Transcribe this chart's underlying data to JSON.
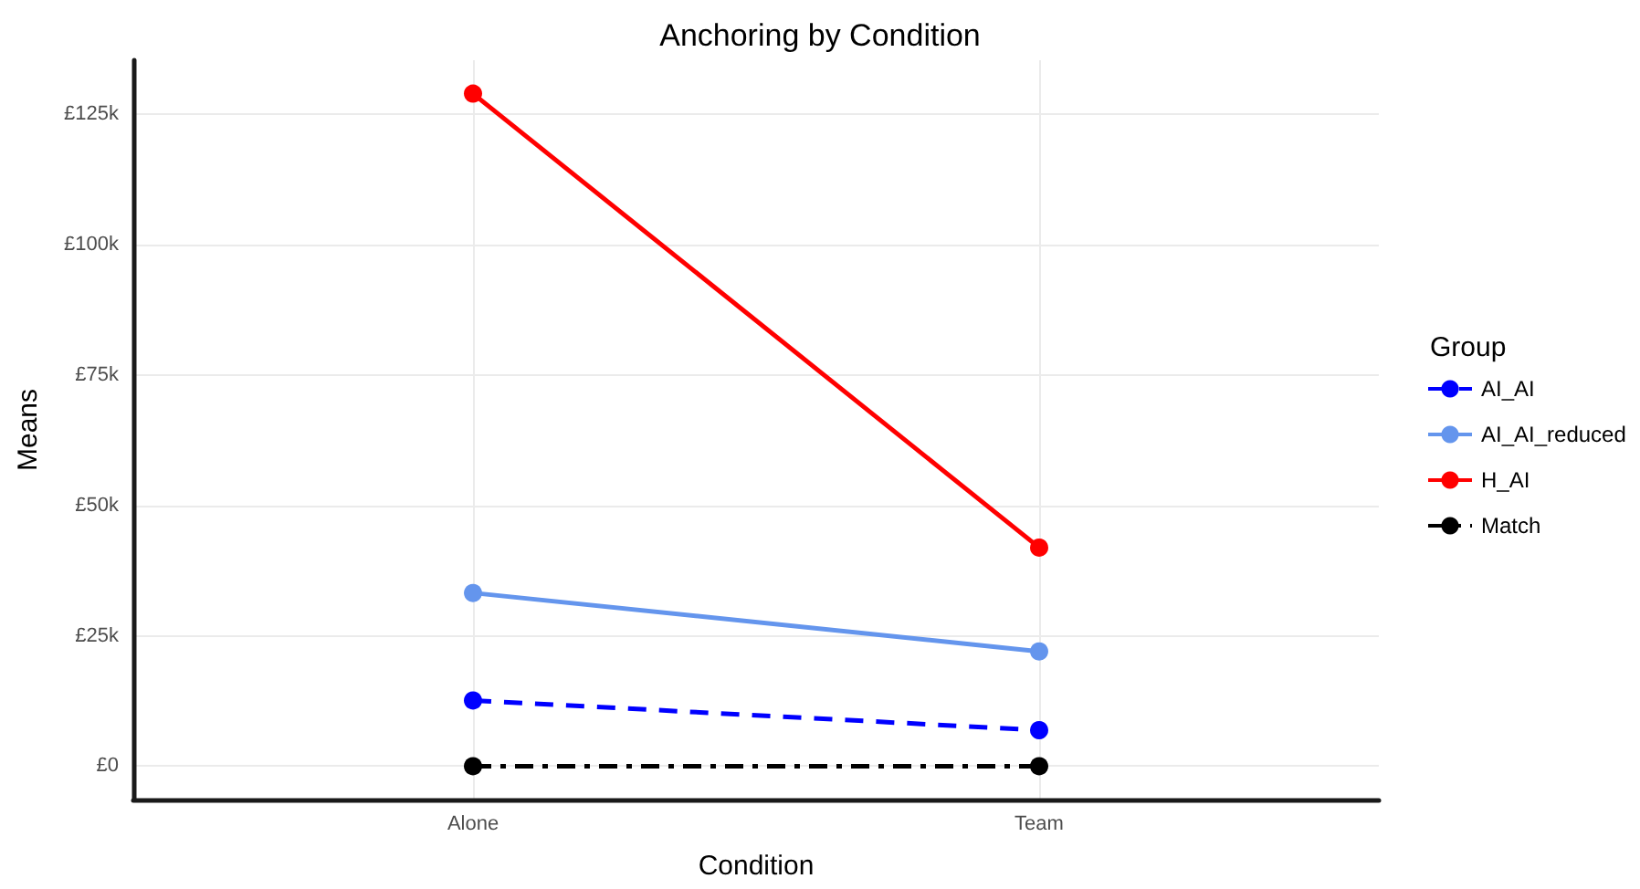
{
  "chart_data": {
    "type": "line",
    "title": "Anchoring by Condition",
    "xlabel": "Condition",
    "ylabel": "Means",
    "legend_title": "Group",
    "categories": [
      "Alone",
      "Team"
    ],
    "series": [
      {
        "name": "AI_AI",
        "color": "#0000ff",
        "values": [
          12600,
          6900
        ],
        "line_style": "dashed"
      },
      {
        "name": "AI_AI_reduced",
        "color": "#6495ed",
        "values": [
          33200,
          22000
        ]
      },
      {
        "name": "H_AI",
        "color": "#ff0000",
        "values": [
          128900,
          41900
        ]
      },
      {
        "name": "Match",
        "color": "#000000",
        "values": [
          0,
          0
        ],
        "line_style": "dashdot"
      }
    ],
    "ylim": [
      -6400,
      135300
    ],
    "yticks": [
      {
        "value": 0,
        "label": "£0"
      },
      {
        "value": 25000,
        "label": "£25k"
      },
      {
        "value": 50000,
        "label": "£50k"
      },
      {
        "value": 75000,
        "label": "£75k"
      },
      {
        "value": 100000,
        "label": "£100k"
      },
      {
        "value": 125000,
        "label": "£125k"
      }
    ],
    "grid": true,
    "legend": "right",
    "marker": "circle",
    "line_style": "solid"
  }
}
